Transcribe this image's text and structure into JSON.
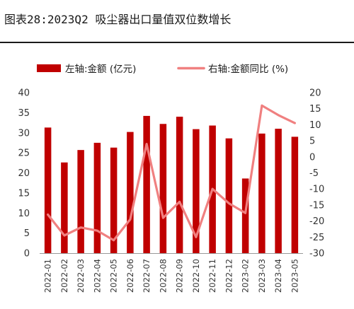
{
  "title": "图表28:2023Q2 吸尘器出口量值双位数增长",
  "chart_data": {
    "type": "bar+line",
    "categories": [
      "2022-01",
      "2022-02",
      "2022-03",
      "2022-04",
      "2022-05",
      "2022-06",
      "2022-07",
      "2022-08",
      "2022-09",
      "2022-10",
      "2022-11",
      "2022-12",
      "2023-02",
      "2023-03",
      "2023-04",
      "2023-05"
    ],
    "series": [
      {
        "name": "左轴:金额 (亿元)",
        "type": "bar",
        "axis": "left",
        "color": "#c00000",
        "values": [
          31.3,
          22.6,
          25.7,
          27.5,
          26.3,
          30.2,
          34.2,
          32.2,
          34.0,
          30.9,
          31.8,
          28.6,
          18.6,
          29.8,
          31.0,
          29.0
        ]
      },
      {
        "name": "右轴:金额同比 (%)",
        "type": "line",
        "axis": "right",
        "color": "#f08080",
        "values": [
          -18,
          -24.5,
          -22,
          -23,
          -26,
          -19.5,
          4,
          -19,
          -14,
          -25,
          -10,
          -14.5,
          -17.5,
          16,
          13,
          10.5
        ]
      }
    ],
    "left_axis": {
      "min": 0,
      "max": 40,
      "ticks": [
        0,
        5,
        10,
        15,
        20,
        25,
        30,
        35,
        40
      ]
    },
    "right_axis": {
      "min": -30,
      "max": 20,
      "ticks": [
        -30,
        -25,
        -20,
        -15,
        -10,
        -5,
        0,
        5,
        10,
        15,
        20
      ]
    },
    "legend": {
      "position": "top"
    },
    "grid": false
  }
}
